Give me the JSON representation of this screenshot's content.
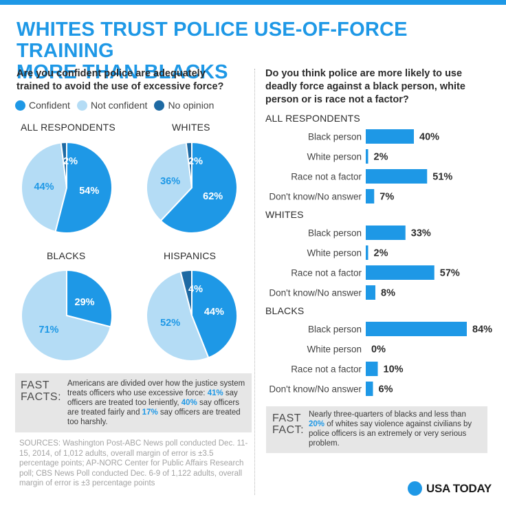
{
  "header": {
    "title_line1": "WHITES TRUST POLICE USE-OF-FORCE TRAINING",
    "title_line2": "MORE THAN BLACKS"
  },
  "left": {
    "question_line1": "Are you confident police are adequately",
    "question_line2": "trained to avoid the use of excessive force?",
    "legend": [
      {
        "label": "Confident",
        "color": "#1e98e6"
      },
      {
        "label": "Not confident",
        "color": "#b4dcf5"
      },
      {
        "label": "No opinion",
        "color": "#1e6aa3"
      }
    ]
  },
  "right": {
    "question_line1": "Do you think police are more likely to use",
    "question_line2": "deadly force against a black person, white",
    "question_line3": "person or is race not a factor?"
  },
  "chart_data": [
    {
      "type": "pie",
      "title": "ALL RESPONDENTS",
      "labels": [
        "Confident",
        "Not confident",
        "No opinion"
      ],
      "values": [
        54,
        44,
        2
      ],
      "value_labels": [
        "54%",
        "44%",
        "2%"
      ]
    },
    {
      "type": "pie",
      "title": "WHITES",
      "labels": [
        "Confident",
        "Not confident",
        "No opinion"
      ],
      "values": [
        62,
        36,
        2
      ],
      "value_labels": [
        "62%",
        "36%",
        "2%"
      ]
    },
    {
      "type": "pie",
      "title": "BLACKS",
      "labels": [
        "Confident",
        "Not confident"
      ],
      "values": [
        29,
        71
      ],
      "value_labels": [
        "29%",
        "71%"
      ]
    },
    {
      "type": "pie",
      "title": "HISPANICS",
      "labels": [
        "Confident",
        "Not confident",
        "No opinion"
      ],
      "values": [
        44,
        52,
        4
      ],
      "value_labels": [
        "44%",
        "52%",
        "4%"
      ]
    },
    {
      "type": "bar",
      "orientation": "horizontal",
      "categories": [
        "Black person",
        "White person",
        "Race not a factor",
        "Don't know/No answer"
      ],
      "groups": [
        {
          "name": "ALL RESPONDENTS",
          "values": [
            40,
            2,
            51,
            7
          ],
          "value_labels": [
            "40%",
            "2%",
            "51%",
            "7%"
          ]
        },
        {
          "name": "WHITES",
          "values": [
            33,
            2,
            57,
            8
          ],
          "value_labels": [
            "33%",
            "2%",
            "57%",
            "8%"
          ]
        },
        {
          "name": "BLACKS",
          "values": [
            84,
            0,
            10,
            6
          ],
          "value_labels": [
            "84%",
            "0%",
            "10%",
            "6%"
          ]
        }
      ],
      "xlim": [
        0,
        100
      ]
    }
  ],
  "fast_facts_left": {
    "label_line1": "FAST",
    "label_line2": "FACTS:",
    "t1": "Americans are divided over how the justice system treats officers who use excessive force: ",
    "h1": "41%",
    "t2": " say officers are treated too leniently, ",
    "h2": "40%",
    "t3": " say officers are treated fairly and ",
    "h3": "17%",
    "t4": " say officers are treated too harshly."
  },
  "fast_fact_right": {
    "label_line1": "FAST",
    "label_line2": "FACT:",
    "t1": "Nearly three-quarters of blacks and less than ",
    "h1": "20%",
    "t2": " of whites say violence against civilians by police officers is an extremely or very serious problem."
  },
  "sources": "SOURCES: Washington Post-ABC News poll conducted Dec. 11-15, 2014, of 1,012 adults, overall margin of error is ±3.5 percentage points; AP-NORC Center for Public Affairs Research poll; CBS News Poll conducted Dec. 6-9 of 1,122 adults, overall margin of error is ±3 percentage points",
  "brand": "USA TODAY",
  "colors": {
    "confident": "#1e98e6",
    "not_confident": "#b4dcf5",
    "no_opinion": "#1e6aa3",
    "bar": "#1e98e6",
    "title": "#1e98e6"
  }
}
